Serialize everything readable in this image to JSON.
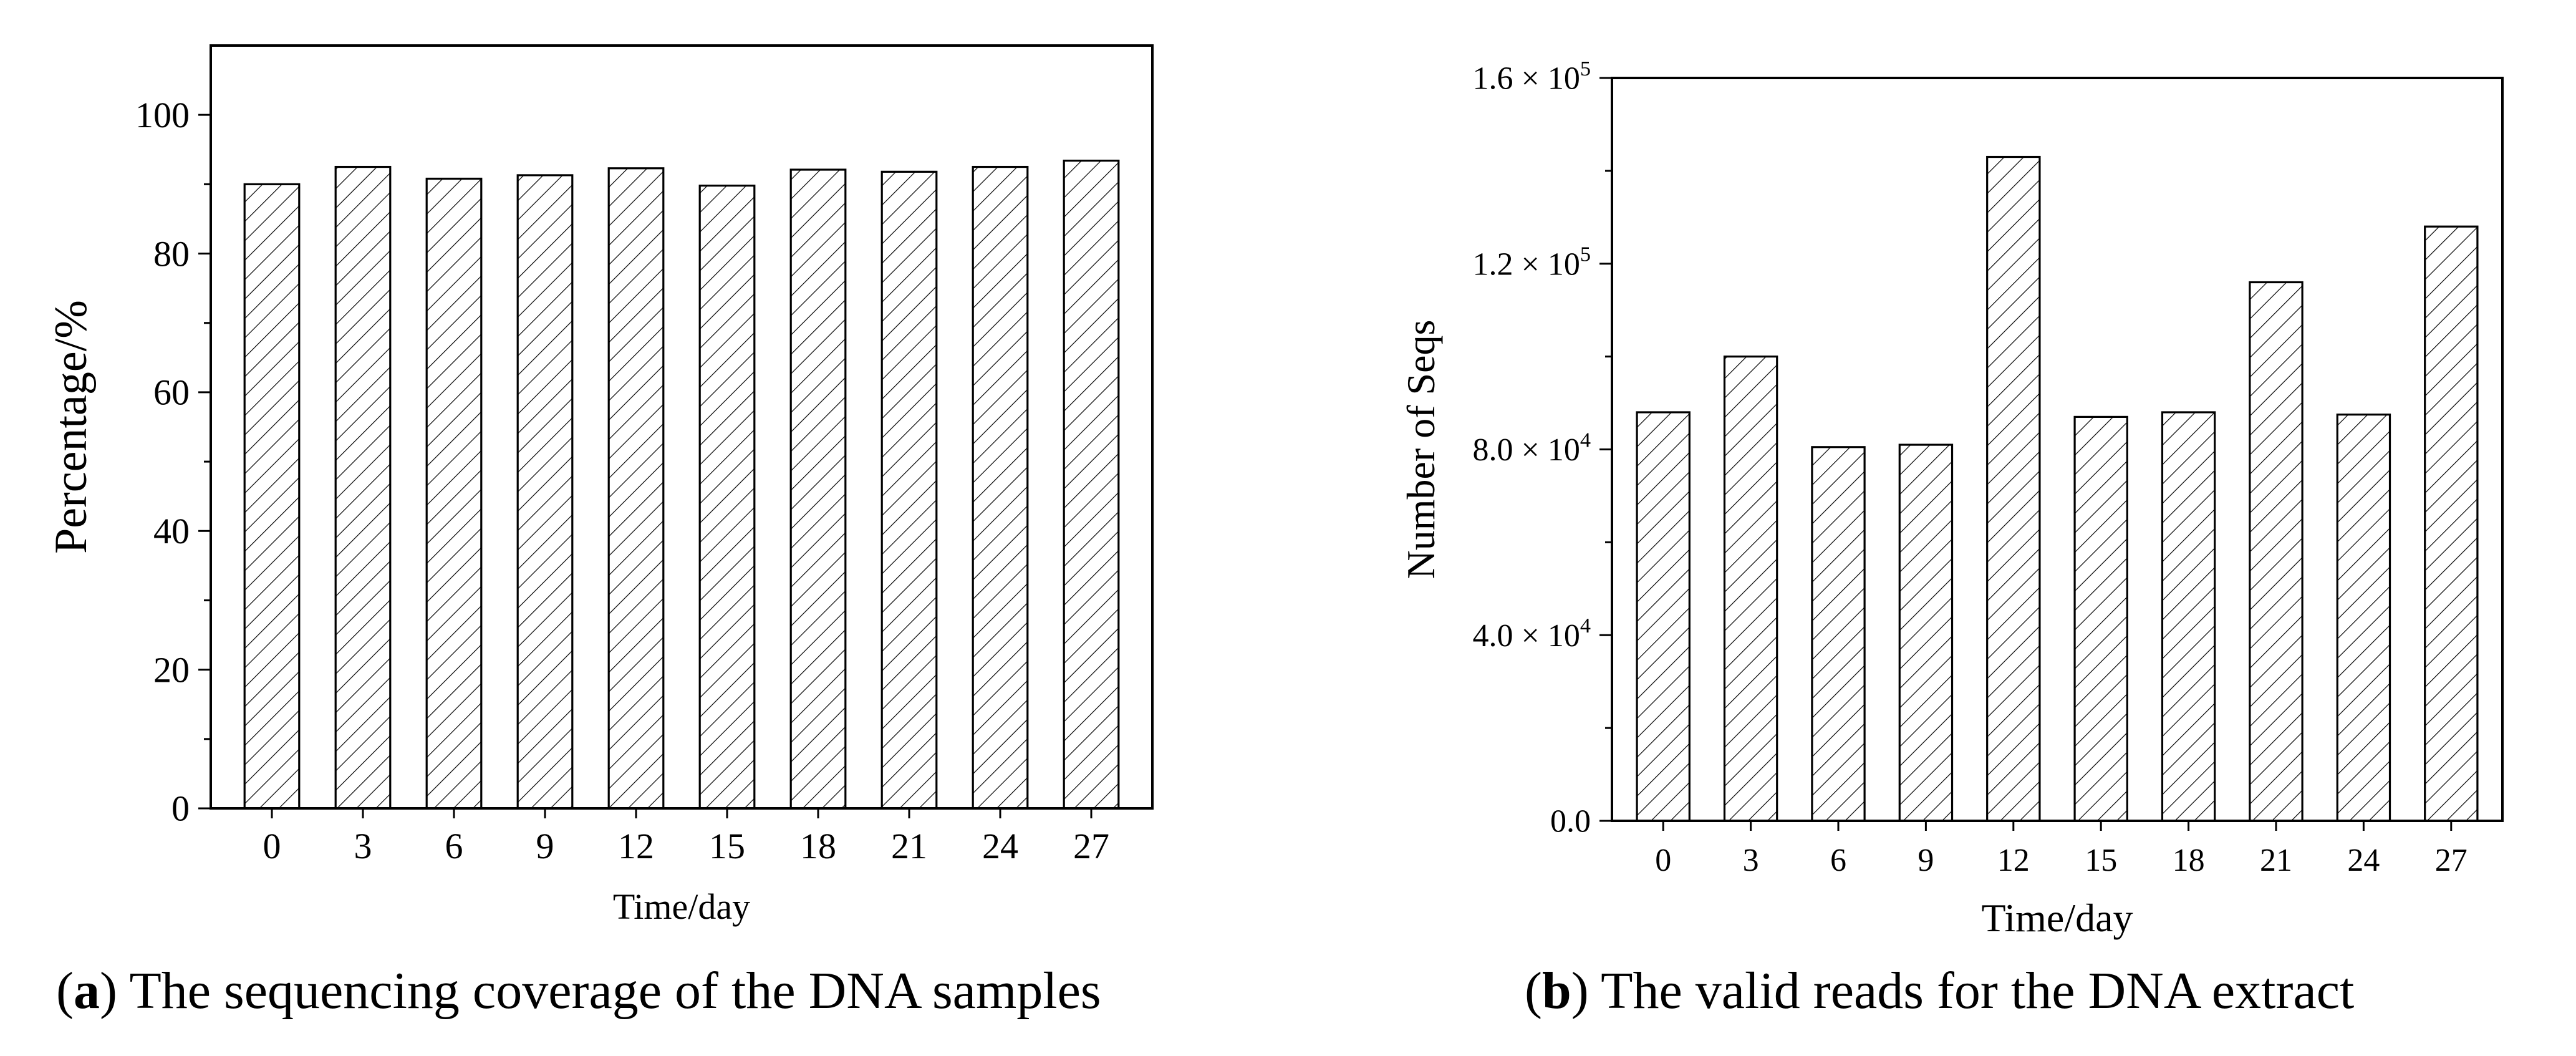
{
  "chart_data": [
    {
      "type": "bar",
      "caption_letter": "a",
      "caption_text": "The sequencing coverage of the DNA samples",
      "xlabel": "Time/day",
      "ylabel": "Percentage/%",
      "categories": [
        "0",
        "3",
        "6",
        "9",
        "12",
        "15",
        "18",
        "21",
        "24",
        "27"
      ],
      "values": [
        90.0,
        92.5,
        90.8,
        91.3,
        92.3,
        89.8,
        92.1,
        91.8,
        92.5,
        93.4
      ],
      "ylim": [
        0,
        110
      ],
      "yticks": [
        0,
        20,
        40,
        60,
        80,
        100
      ],
      "ytick_labels": [
        "0",
        "20",
        "40",
        "60",
        "80",
        "100"
      ],
      "fill": "hatched",
      "color": "#000000",
      "legend": "none",
      "grid": false
    },
    {
      "type": "bar",
      "caption_letter": "b",
      "caption_text": "The valid reads for the DNA extract",
      "xlabel": "Time/day",
      "ylabel": "Number of Seqs",
      "categories": [
        "0",
        "3",
        "6",
        "9",
        "12",
        "15",
        "18",
        "21",
        "24",
        "27"
      ],
      "values": [
        88000,
        100000,
        80500,
        81000,
        143000,
        87000,
        88000,
        116000,
        87500,
        128000
      ],
      "ylim": [
        0,
        160000
      ],
      "yticks": [
        0,
        40000,
        80000,
        120000,
        160000
      ],
      "ytick_labels": [
        {
          "mantissa": "0.0",
          "exp": ""
        },
        {
          "mantissa": "4.0 × 10",
          "exp": "4"
        },
        {
          "mantissa": "8.0 × 10",
          "exp": "4"
        },
        {
          "mantissa": "1.2 × 10",
          "exp": "5"
        },
        {
          "mantissa": "1.6 × 10",
          "exp": "5"
        }
      ],
      "fill": "hatched",
      "color": "#000000",
      "legend": "none",
      "grid": false
    }
  ]
}
